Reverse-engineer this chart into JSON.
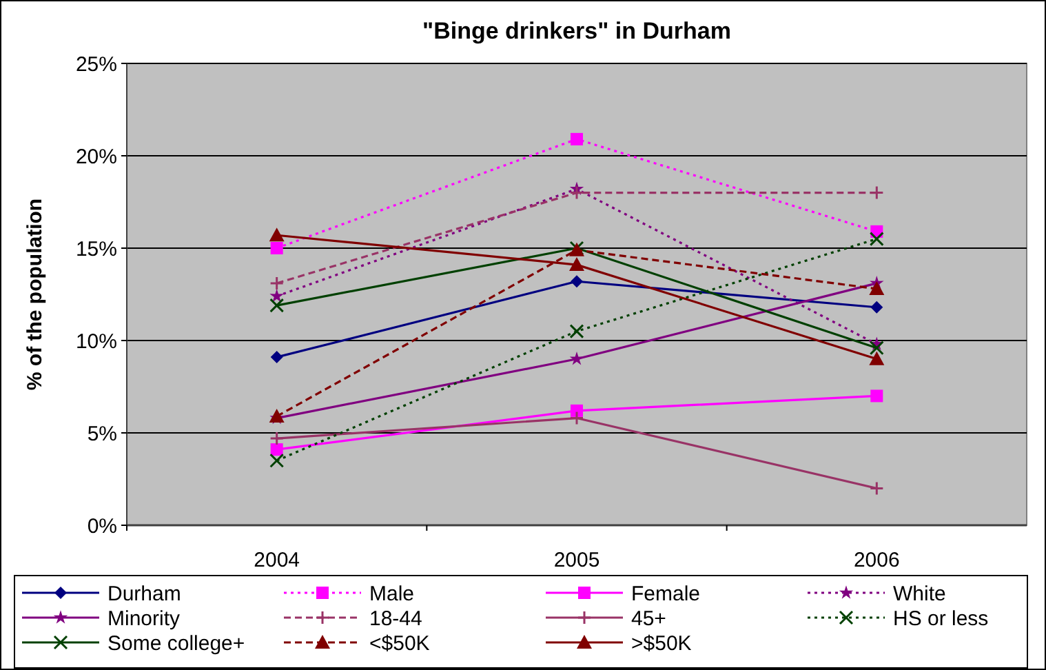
{
  "chart_data": {
    "type": "line",
    "title": "\"Binge drinkers\" in Durham",
    "ylabel": "% of the population",
    "categories": [
      "2004",
      "2005",
      "2006"
    ],
    "ylim": [
      0,
      25
    ],
    "yticks": [
      {
        "value": 0,
        "label": "0%"
      },
      {
        "value": 5,
        "label": "5%"
      },
      {
        "value": 10,
        "label": "10%"
      },
      {
        "value": 15,
        "label": "15%"
      },
      {
        "value": 20,
        "label": "20%"
      },
      {
        "value": 25,
        "label": "25%"
      }
    ],
    "grid": "y",
    "legend": "bottom",
    "series": [
      {
        "name": "Durham",
        "color": "#000080",
        "marker": "diamond",
        "line_style": "solid",
        "values": [
          9.1,
          13.2,
          11.8
        ]
      },
      {
        "name": "Male",
        "color": "#ff00ff",
        "marker": "square",
        "line_style": "dotted",
        "values": [
          15.0,
          20.9,
          15.9
        ]
      },
      {
        "name": "Female",
        "color": "#ff00ff",
        "marker": "square",
        "line_style": "solid",
        "values": [
          4.1,
          6.2,
          7.0
        ]
      },
      {
        "name": "White",
        "color": "#800080",
        "marker": "star",
        "line_style": "dotted",
        "values": [
          12.4,
          18.2,
          9.8
        ]
      },
      {
        "name": "Minority",
        "color": "#800080",
        "marker": "star",
        "line_style": "solid",
        "values": [
          5.8,
          9.0,
          13.1
        ]
      },
      {
        "name": "18-44",
        "color": "#993366",
        "marker": "plus",
        "line_style": "dashed",
        "values": [
          13.1,
          18.0,
          18.0
        ]
      },
      {
        "name": "45+",
        "color": "#993366",
        "marker": "plus",
        "line_style": "solid",
        "values": [
          4.7,
          5.8,
          2.0
        ]
      },
      {
        "name": "HS or less",
        "color": "#004000",
        "marker": "cross",
        "line_style": "dotted",
        "values": [
          3.5,
          10.5,
          15.5
        ]
      },
      {
        "name": "Some college+",
        "color": "#004000",
        "marker": "cross",
        "line_style": "solid",
        "values": [
          11.9,
          15.0,
          9.6
        ]
      },
      {
        "name": "<$50K",
        "color": "#800000",
        "marker": "triangle",
        "line_style": "dashed",
        "values": [
          5.9,
          14.9,
          12.8
        ]
      },
      {
        "name": ">$50K",
        "color": "#800000",
        "marker": "triangle",
        "line_style": "solid",
        "values": [
          15.7,
          14.1,
          9.0
        ]
      }
    ]
  }
}
